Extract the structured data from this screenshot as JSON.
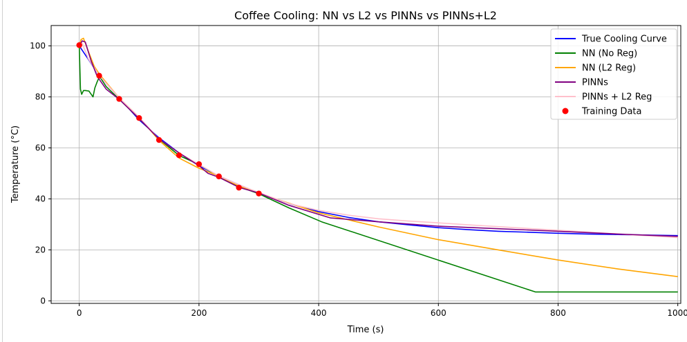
{
  "chart_data": {
    "type": "line",
    "title": "Coffee Cooling: NN vs L2 vs PINNs vs PINNs+L2",
    "xlabel": "Time (s)",
    "ylabel": "Temperature (°C)",
    "xlim": [
      -47,
      1005
    ],
    "ylim": [
      -1,
      108
    ],
    "xticks": [
      0,
      200,
      400,
      600,
      800,
      1000
    ],
    "yticks": [
      0,
      20,
      40,
      60,
      80,
      100
    ],
    "grid": true,
    "legend_position": "upper right",
    "series": [
      {
        "name": "True Cooling Curve",
        "color": "#0000ff",
        "x": [
          0,
          33,
          67,
          100,
          133,
          167,
          200,
          233,
          267,
          300,
          350,
          400,
          450,
          500,
          550,
          600,
          650,
          700,
          750,
          800,
          850,
          900,
          950,
          1000
        ],
        "y": [
          100,
          88.5,
          79.5,
          71.0,
          64.0,
          58.0,
          53.0,
          49.0,
          45.5,
          42.3,
          38.2,
          35.0,
          32.7,
          31.0,
          29.8,
          28.7,
          27.9,
          27.3,
          26.9,
          26.5,
          26.2,
          26.0,
          25.8,
          25.6
        ]
      },
      {
        "name": "NN (No Reg)",
        "color": "#008000",
        "x": [
          0,
          2,
          4,
          7,
          10,
          16,
          20,
          23,
          26,
          30,
          34,
          45,
          67,
          100,
          133,
          167,
          200,
          233,
          267,
          300,
          350,
          405,
          762,
          1000
        ],
        "y": [
          100,
          83,
          81,
          82.5,
          82.5,
          82.3,
          81,
          80,
          83.5,
          86,
          88,
          84,
          79,
          71.5,
          63.5,
          57,
          53.5,
          48.8,
          44.8,
          42,
          36.5,
          31,
          3.5,
          3.5
        ]
      },
      {
        "name": "NN (L2 Reg)",
        "color": "#ffa500",
        "x": [
          0,
          3,
          7,
          15,
          25,
          35,
          67,
          100,
          133,
          167,
          200,
          233,
          267,
          300,
          400,
          500,
          600,
          700,
          800,
          900,
          1000
        ],
        "y": [
          100,
          102.5,
          103,
          98,
          92,
          88.5,
          79.5,
          72,
          63,
          56,
          52,
          49,
          45,
          42.2,
          34.5,
          29,
          24,
          20,
          16,
          12.5,
          9.5
        ]
      },
      {
        "name": "PINNs",
        "color": "#800080",
        "x": [
          0,
          5,
          10,
          20,
          30,
          45,
          67,
          100,
          133,
          167,
          200,
          215,
          233,
          267,
          300,
          350,
          420,
          500,
          600,
          700,
          800,
          900,
          1000
        ],
        "y": [
          100,
          102,
          101.5,
          94,
          88,
          83,
          79,
          71.5,
          63.5,
          58,
          53,
          50,
          48.5,
          44.5,
          42.3,
          37.5,
          32.5,
          31,
          29.3,
          28.3,
          27.3,
          26.2,
          25.3
        ]
      },
      {
        "name": "PINNs + L2 Reg",
        "color": "#ffc0cb",
        "x": [
          0,
          5,
          15,
          33,
          67,
          100,
          133,
          167,
          200,
          233,
          267,
          300,
          350,
          400,
          450,
          500,
          550,
          600,
          650,
          700,
          750,
          800,
          850,
          900,
          950,
          1000
        ],
        "y": [
          100.5,
          101,
          95,
          88.5,
          79.5,
          72,
          63.5,
          58,
          53.5,
          49,
          45.5,
          42.5,
          38.2,
          35.5,
          33.6,
          32.2,
          31.3,
          30.6,
          29.8,
          29.1,
          28.4,
          27.7,
          27.0,
          26.2,
          25.5,
          24.8
        ]
      }
    ],
    "scatter": {
      "name": "Training Data",
      "color": "#ff0000",
      "x": [
        0,
        33.3,
        66.7,
        100,
        133.3,
        166.7,
        200,
        233.3,
        266.7,
        300
      ],
      "y": [
        100.3,
        88.3,
        79.2,
        71.7,
        63.1,
        57.1,
        53.6,
        48.8,
        44.4,
        42.1
      ]
    }
  }
}
